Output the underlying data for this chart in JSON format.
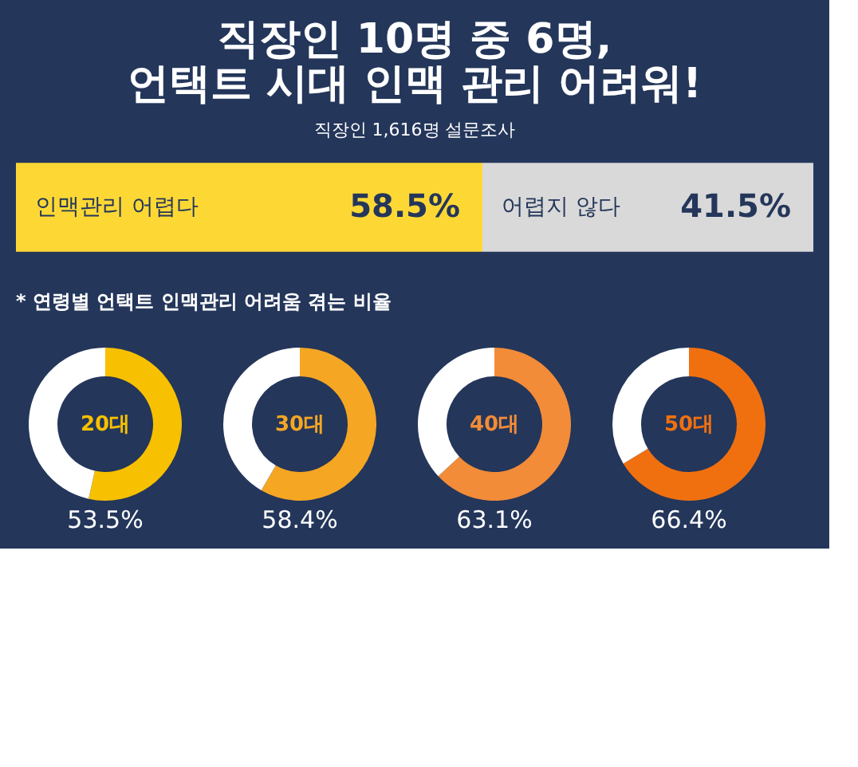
{
  "chart_data": [
    {
      "type": "bar",
      "orientation": "horizontal",
      "stacked": true,
      "title": "직장인 10명 중 6명,\n언택트 시대 인맥 관리 어려워!",
      "subtitle": "직장인 1,616명 설문조사",
      "categories": [
        null
      ],
      "xlim": [
        0,
        100
      ],
      "tick_labels": false,
      "legend": false,
      "series": [
        {
          "name": "인맥관리 어렵다",
          "color": "#fdd835",
          "values": [
            58.5
          ],
          "value_labels": [
            "58.5%"
          ]
        },
        {
          "name": "어렵지 않다",
          "color": "#d9d9d9",
          "values": [
            41.5
          ],
          "value_labels": [
            "41.5%"
          ]
        }
      ]
    },
    {
      "type": "donut",
      "annotations": [
        "* 연령별 언택트 인맥관리 어려움 겪는 비율"
      ],
      "categories": [
        "20대",
        null
      ],
      "values": [
        53.5,
        46.5
      ],
      "colors": [
        "#f7c000",
        "#ffffff"
      ],
      "value_labels": [
        "53.5%",
        null
      ]
    },
    {
      "type": "donut",
      "categories": [
        "30대",
        null
      ],
      "values": [
        58.4,
        41.6
      ],
      "colors": [
        "#f5a623",
        "#ffffff"
      ],
      "value_labels": [
        "58.4%",
        null
      ]
    },
    {
      "type": "donut",
      "categories": [
        "40대",
        null
      ],
      "values": [
        63.1,
        36.9
      ],
      "colors": [
        "#f28c38",
        "#ffffff"
      ],
      "value_labels": [
        "63.1%",
        null
      ]
    },
    {
      "type": "donut",
      "categories": [
        "50대",
        null
      ],
      "values": [
        66.4,
        33.6
      ],
      "colors": [
        "#f07010",
        "#ffffff"
      ],
      "value_labels": [
        "66.4%",
        null
      ]
    }
  ]
}
